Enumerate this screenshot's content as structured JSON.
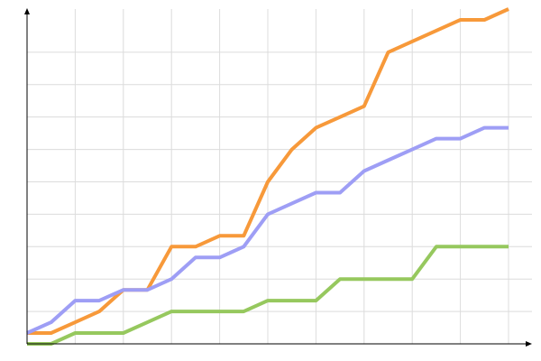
{
  "chart_data": {
    "type": "line",
    "categories": [
      null,
      null,
      null,
      null,
      null,
      null,
      null,
      null,
      null,
      null,
      null,
      null,
      null,
      null,
      null,
      null,
      null,
      null,
      null,
      null,
      null
    ],
    "series": [
      {
        "color": "#f7993a",
        "values": [
          1,
          1,
          2,
          3,
          5,
          5,
          9,
          9,
          10,
          10,
          15,
          18,
          20,
          21,
          22,
          27,
          28,
          29,
          30,
          30,
          31
        ]
      },
      {
        "color": "#9e9ef5",
        "values": [
          1,
          2,
          4,
          4,
          5,
          5,
          6,
          8,
          8,
          9,
          12,
          13,
          14,
          14,
          16,
          17,
          18,
          19,
          19,
          20,
          20
        ]
      },
      {
        "color": "#96c85e",
        "values": [
          0,
          0,
          1,
          1,
          1,
          2,
          3,
          3,
          3,
          3,
          4,
          4,
          4,
          6,
          6,
          6,
          6,
          9,
          9,
          9,
          9
        ]
      }
    ],
    "ylim": [
      0,
      31
    ],
    "yticks": [
      3,
      6,
      9,
      12,
      15,
      18,
      21,
      24,
      27
    ],
    "grid": true
  }
}
